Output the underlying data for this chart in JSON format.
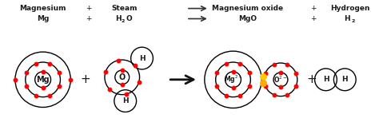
{
  "bg_color": "#ffffff",
  "text_color": "#1a1a1a",
  "electron_color": "#ff0000",
  "bond_color": "#ffcc00",
  "figsize": [
    4.74,
    1.58
  ],
  "dpi": 100,
  "top_labels": {
    "magnesium_name": "Magnesium",
    "magnesium_formula": "Mg",
    "steam_name": "Steam",
    "steam_formula_h": "H",
    "steam_formula_2": "2",
    "steam_formula_o": "O",
    "mgo_name": "Magnesium oxide",
    "mgo_formula": "MgO",
    "hydrogen_name": "Hydrogen",
    "hydrogen_formula_h": "H",
    "hydrogen_formula_2": "2",
    "plus": "+",
    "mg2_label": "Mg",
    "o_label": "O",
    "h_label": "H",
    "mg2plus_label": "Mg",
    "o2minus_label": "O"
  }
}
